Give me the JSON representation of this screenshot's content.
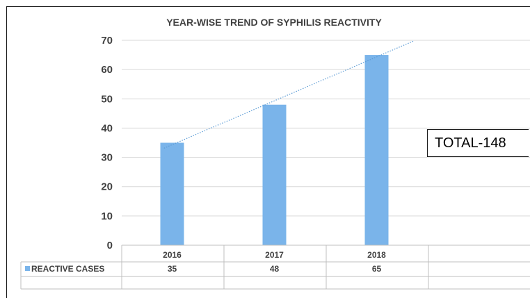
{
  "chart_data": {
    "type": "bar",
    "title": "YEAR-WISE TREND OF SYPHILIS REACTIVITY",
    "categories": [
      "2016",
      "2017",
      "2018"
    ],
    "series": [
      {
        "name": "REACTIVE CASES",
        "values": [
          35,
          48,
          65
        ],
        "color": "#7ab4ea"
      }
    ],
    "trendline": {
      "type": "linear",
      "style": "dotted",
      "color": "#5b9bd5"
    },
    "ylim": [
      0,
      70
    ],
    "yticks": [
      "0",
      "10",
      "20",
      "30",
      "40",
      "50",
      "60",
      "70"
    ],
    "grid": true,
    "data_table": true,
    "table_values": [
      "35",
      "48",
      "65"
    ],
    "annotation": "TOTAL-148"
  }
}
